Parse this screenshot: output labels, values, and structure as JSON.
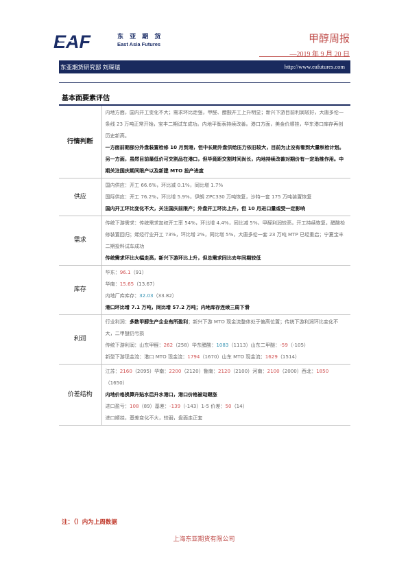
{
  "header": {
    "logo_text": "EAF",
    "company_cn": "东 亚 期 货",
    "company_en": "East Asia Futures",
    "report_title": "甲醇周报",
    "report_date": "—2019 年 9 月 20 日",
    "dept_author": "东亚期货研究部  刘琛瑞",
    "website": "http://www.eafutures.com"
  },
  "section_title": "基本面要素评估",
  "rows": {
    "market": {
      "label": "行情判断",
      "text1": "内地方面，国内开工变化不大；需求环比走强，甲醛、醋酸开工上升明显；新兴下游目前利润较好，大唐多伦一条线 23 万吨正常开始，宝丰二期试车成功。内地平衡表持续改善。港口方面，美金价顺挂，华东港口库存再创历史新高。",
      "text2": "一方面前期部分外盘装置检修 10 月到港，但中长期外盘供给压力依旧较大，目前为止没有看到大量秋检计划。另一方面，虽然目前最低价可交割品在港口，但毕竟距交割时间尚长，内地持续改善对期价有一定助推作用。中期关注国庆期间限产以及新建 MTO 投产进度"
    },
    "supply": {
      "label": "供应",
      "l1": "国内供应：开工 66.6%，环比减 0.1%，同比增 1.7%",
      "l2": "国际供应：开工 76.2%，环比增 5.9%，伊朗 ZPC330 万吨恢复，沙特一套 175 万吨装置恢复",
      "l3": "国内开工环比变化不大，关注国庆前限产；外盘开工环比上升，但 10 月进口量或受一定影响"
    },
    "demand": {
      "label": "需求",
      "l1": "传统下游需求：传统需求加权开工率 54%，环比增 4.4%，同比减 5%，甲醛利润较高，开工持续恢复，醋酸检修装置回归；烯烃行业开工 73%，环比增 2%，同比增 5%，大唐多伦一套 23 万吨 MTP 已经重启；宁夏宝丰二期投料试车成功",
      "l2": "传统需求环比大幅走高，新兴下游环比上升，但总需求同比去年同期较低"
    },
    "inventory": {
      "label": "库存",
      "east_label": "华东：",
      "east_value": "96.1",
      "east_prev": "（91）",
      "south_label": "华南：",
      "south_value": "15.65",
      "south_prev": "（13.67）",
      "inland_label": "内地厂库库存：",
      "inland_value": "32.03",
      "inland_prev": "（33.82）",
      "summary": "港口环比增 7.1 万吨，同比增 57.2 万吨；内地库存连续三周下滑"
    },
    "profit": {
      "label": "利润",
      "l1_prefix": "行业利润：",
      "l1_bold": "多数甲醇生产企业有所盈利",
      "l1_rest": "；新兴下游 MTO 现金流整体处于偏高位置；传统下游利润环比变化不大，二甲醚仍亏损",
      "l2_a": "传统下游利润：山东甲醛：",
      "l2_v1": "262",
      "l2_b": "（258）华东醋酸：",
      "l2_v2": "1083",
      "l2_c": "（1113）山东二甲醚：",
      "l2_v3": "-59",
      "l2_d": "（-105）",
      "l3_a": "新型下游现金流：港口 MTO 现金流：",
      "l3_v1": "1794",
      "l3_b": "（1670）山东 MTO 现金流：",
      "l3_v2": "1629",
      "l3_c": "（1514）"
    },
    "spread": {
      "label": "价差结构",
      "l1_a": "江苏：",
      "l1_v1": "2160",
      "l1_b": "（2095）华南：",
      "l1_v2": "2200",
      "l1_c": "（2120）鲁南：",
      "l1_v3": "2120",
      "l1_d": "（2100）河南：",
      "l1_v4": "2100",
      "l1_e": "（2000）",
      "l2_a": "西北：",
      "l2_v1": "1850",
      "l2_b": "（1650）",
      "l3": "内地价格换算升贴水后升水港口，港口价格被动跟涨",
      "l4_a": "进口盈亏：",
      "l4_v1": "108",
      "l4_b": "（89）基差：",
      "l4_v2": "-139",
      "l4_c": "（-143）1-5 价差：",
      "l4_v3": "50",
      "l4_d": "（14）",
      "l5": "进口顺挂，基差变化不大，较弱，盘面走正套"
    }
  },
  "note": "注：（）内为上周数据",
  "footer": "上海东亚期货有限公司",
  "colors": {
    "brand_navy": "#1a2a5e",
    "accent_red": "#c0504d",
    "value_red": "#d05050",
    "value_blue": "#2e8fb0"
  }
}
